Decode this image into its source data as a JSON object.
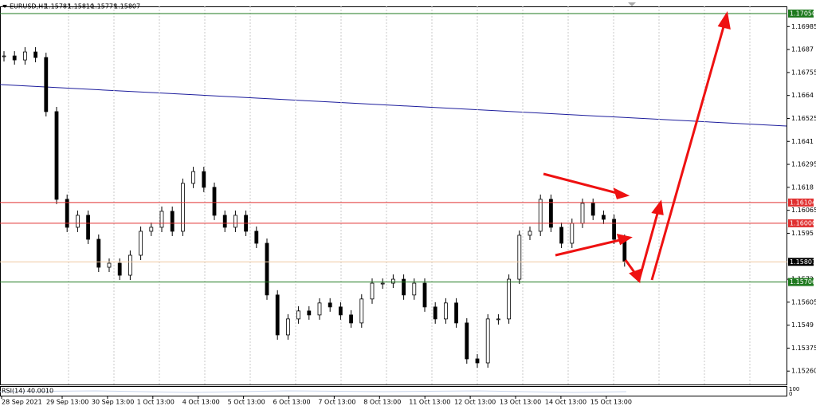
{
  "chart_data": {
    "type": "candlestick",
    "header": {
      "symbol": "EURUSD,H1",
      "ohlc": [
        "1.15781",
        "1.15810",
        "1.15778",
        "1.15807"
      ]
    },
    "ylim": [
      1.15193,
      1.17086
    ],
    "yticks": [
      1.16985,
      1.1687,
      1.16755,
      1.1664,
      1.16525,
      1.1641,
      1.16295,
      1.1618,
      1.16065,
      1.1595,
      1.1572,
      1.15605,
      1.1549,
      1.15375,
      {
        "value": 1.1526,
        "label": "1.15260"
      }
    ],
    "levels": [
      {
        "value": 1.1705,
        "label": "1.17050",
        "color": "#1f7a1f"
      },
      {
        "value": 1.16104,
        "label": "1.16104",
        "color": "#e03030"
      },
      {
        "value": 1.16,
        "label": "1.16000",
        "color": "#e03030"
      },
      {
        "value": 1.15807,
        "label": "1.15807",
        "color": "#000000"
      },
      {
        "value": 1.15706,
        "label": "1.15706",
        "color": "#1f7a1f"
      }
    ],
    "closes": [
      1.16838,
      1.16818,
      1.16858,
      1.1683,
      1.16559,
      1.1612,
      1.1598,
      1.1604,
      1.1592,
      1.1578,
      1.158,
      1.1574,
      1.1584,
      1.1596,
      1.1598,
      1.1606,
      1.1596,
      1.162,
      1.16259,
      1.1618,
      1.1604,
      1.1598,
      1.1604,
      1.1596,
      1.159,
      1.15641,
      1.15441,
      1.15521,
      1.15561,
      1.15541,
      1.15601,
      1.15581,
      1.15541,
      1.15501,
      1.15621,
      1.157,
      1.157,
      1.1572,
      1.15641,
      1.157,
      1.15581,
      1.15521,
      1.15601,
      1.15501,
      1.15321,
      1.15301,
      1.15521,
      1.15521,
      1.1572,
      1.1594,
      1.1596,
      1.1612,
      1.1598,
      1.159,
      1.16,
      1.161,
      1.1604,
      1.1602,
      1.1592,
      1.15807
    ],
    "dates": [
      "28 Sep 2021",
      "29 Sep 13:00",
      "30 Sep 13:00",
      "1 Oct 13:00",
      "4 Oct 13:00",
      "5 Oct 13:00",
      "6 Oct 13:00",
      "7 Oct 13:00",
      "8 Oct 13:00",
      "11 Oct 13:00",
      "12 Oct 13:00",
      "13 Oct 13:00",
      "14 Oct 13:00",
      "15 Oct 13:00"
    ],
    "indicator": {
      "label": "RSI(14) 40.0010",
      "top": "100",
      "bottom": "0"
    }
  }
}
